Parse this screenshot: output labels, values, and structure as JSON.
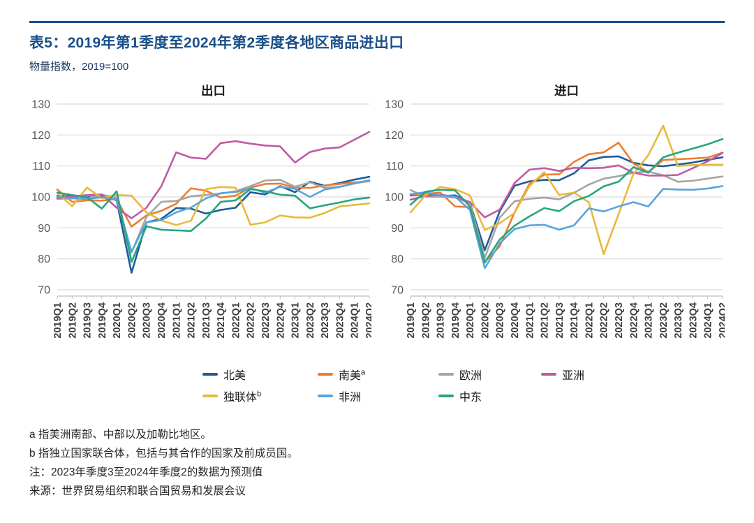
{
  "header": {
    "title": "表5：2019年第1季度至2024年第2季度各地区商品进出口",
    "subtitle": "物量指数，2019=100",
    "accent_color": "#1B4F8A"
  },
  "legend": {
    "items": [
      {
        "label": "北美",
        "sup": "",
        "color": "#1F5C99"
      },
      {
        "label": "南美",
        "sup": "a",
        "color": "#ED7D31"
      },
      {
        "label": "欧洲",
        "sup": "",
        "color": "#A5A5A5"
      },
      {
        "label": "亚洲",
        "sup": "",
        "color": "#C05BA3"
      },
      {
        "label": "独联体",
        "sup": "b",
        "color": "#E9B93C"
      },
      {
        "label": "非洲",
        "sup": "",
        "color": "#5BA3DB"
      },
      {
        "label": "中东",
        "sup": "",
        "color": "#27A57F"
      }
    ]
  },
  "footnotes": {
    "note_a": "a 指美洲南部、中部以及加勒比地区。",
    "note_b": "b 指独立国家联合体，包括与其合作的国家及前成员国。",
    "note": "注：2023年季度3至2024年季度2的数据为预测值",
    "source": "来源：世界贸易组织和联合国贸易和发展会议"
  },
  "style": {
    "grid_color": "#D9D9D9",
    "axis_color": "#BFBFBF",
    "ytick_color": "#595959",
    "xtick_color": "#404040",
    "chart_title_color": "#1a1a1a"
  },
  "chart_data": [
    {
      "type": "line",
      "title": "出口",
      "ylim": [
        70,
        130
      ],
      "yticks": [
        70,
        80,
        90,
        100,
        110,
        120,
        130
      ],
      "grid": true,
      "legend_position": "bottom-shared",
      "categories": [
        "2019Q1",
        "2019Q2",
        "2019Q3",
        "2019Q4",
        "2020Q1",
        "2020Q2",
        "2020Q3",
        "2020Q4",
        "2021Q1",
        "2021Q2",
        "2021Q3",
        "2021Q4",
        "2022Q1",
        "2022Q2",
        "2022Q3",
        "2022Q4",
        "2023Q1",
        "2023Q2",
        "2023Q3",
        "2023Q4",
        "2024Q1",
        "2024Q2"
      ],
      "series": [
        {
          "name": "北美",
          "color": "#1F5C99",
          "values": [
            100.3,
            100.2,
            99.9,
            100.4,
            98.9,
            75.5,
            91.8,
            92.9,
            96.4,
            96.2,
            94.6,
            95.8,
            96.5,
            101.5,
            100.8,
            103.5,
            101.5,
            104.9,
            103.6,
            104.5,
            105.6,
            106.5
          ]
        },
        {
          "name": "南美",
          "color": "#ED7D31",
          "values": [
            102.4,
            98.4,
            98.9,
            98.8,
            99.3,
            90.4,
            94.0,
            95.5,
            97.8,
            102.8,
            102.0,
            99.8,
            100.4,
            103.0,
            104.2,
            104.3,
            103.0,
            102.9,
            103.7,
            104.2,
            104.7,
            105.0
          ]
        },
        {
          "name": "欧洲",
          "color": "#A5A5A5",
          "values": [
            99.3,
            99.5,
            99.6,
            100.7,
            99.8,
            82.0,
            93.5,
            98.4,
            98.7,
            100.2,
            100.6,
            101.1,
            101.8,
            103.5,
            105.3,
            105.5,
            103.3,
            104.7,
            102.9,
            103.3,
            104.3,
            105.2
          ]
        },
        {
          "name": "亚洲",
          "color": "#C05BA3",
          "values": [
            99.6,
            100.1,
            100.6,
            100.8,
            96.5,
            93.1,
            96.5,
            103.4,
            114.4,
            112.7,
            112.3,
            117.4,
            118.0,
            117.2,
            116.6,
            116.3,
            111.1,
            114.5,
            115.6,
            116.0,
            118.5,
            121.0
          ]
        },
        {
          "name": "独联体",
          "color": "#E9B93C",
          "values": [
            101.3,
            97.0,
            103.0,
            99.6,
            100.6,
            100.4,
            95.0,
            92.4,
            90.9,
            92.3,
            102.5,
            103.2,
            103.0,
            91.0,
            91.8,
            94.0,
            93.4,
            93.3,
            94.8,
            96.9,
            97.4,
            97.9
          ]
        },
        {
          "name": "非洲",
          "color": "#5BA3DB",
          "values": [
            100.0,
            99.6,
            99.3,
            99.9,
            99.1,
            82.3,
            91.8,
            92.5,
            95.0,
            96.6,
            99.5,
            101.2,
            101.6,
            102.8,
            101.4,
            103.3,
            102.6,
            100.0,
            102.4,
            103.2,
            104.4,
            105.4
          ]
        },
        {
          "name": "中东",
          "color": "#27A57F",
          "values": [
            101.4,
            100.6,
            99.9,
            96.2,
            101.8,
            79.0,
            90.5,
            89.4,
            89.2,
            89.0,
            93.0,
            98.4,
            98.9,
            102.5,
            101.8,
            100.7,
            100.4,
            96.3,
            97.3,
            98.2,
            99.2,
            99.8
          ]
        }
      ]
    },
    {
      "type": "line",
      "title": "进口",
      "ylim": [
        70,
        130
      ],
      "yticks": [
        70,
        80,
        90,
        100,
        110,
        120,
        130
      ],
      "grid": true,
      "legend_position": "bottom-shared",
      "categories": [
        "2019Q1",
        "2019Q2",
        "2019Q3",
        "2019Q4",
        "2020Q1",
        "2020Q2",
        "2020Q3",
        "2020Q4",
        "2021Q1",
        "2021Q2",
        "2021Q3",
        "2021Q4",
        "2022Q1",
        "2022Q2",
        "2022Q3",
        "2022Q4",
        "2023Q1",
        "2023Q2",
        "2023Q3",
        "2023Q4",
        "2024Q1",
        "2024Q2"
      ],
      "series": [
        {
          "name": "北美",
          "color": "#1F5C99",
          "values": [
            100.5,
            100.9,
            100.3,
            100.5,
            98.1,
            82.8,
            95.3,
            103.6,
            105.0,
            105.5,
            105.4,
            107.6,
            111.8,
            112.9,
            113.1,
            111.0,
            110.2,
            109.9,
            110.5,
            111.1,
            112.0,
            112.8
          ]
        },
        {
          "name": "南美",
          "color": "#ED7D31",
          "values": [
            100.8,
            101.0,
            101.4,
            96.9,
            96.7,
            79.0,
            84.0,
            95.0,
            104.2,
            107.2,
            107.3,
            111.3,
            113.8,
            114.4,
            117.5,
            110.8,
            108.0,
            111.9,
            112.2,
            112.4,
            112.7,
            114.3
          ]
        },
        {
          "name": "欧洲",
          "color": "#A5A5A5",
          "values": [
            102.2,
            100.1,
            100.0,
            99.8,
            98.0,
            80.3,
            93.3,
            98.6,
            99.4,
            99.8,
            99.2,
            101.3,
            104.0,
            105.9,
            106.7,
            107.8,
            108.2,
            107.0,
            104.9,
            105.2,
            105.9,
            106.6
          ]
        },
        {
          "name": "亚洲",
          "color": "#C05BA3",
          "values": [
            99.1,
            100.3,
            100.7,
            100.1,
            98.3,
            93.4,
            95.9,
            104.5,
            108.8,
            109.3,
            108.4,
            109.4,
            109.3,
            109.4,
            110.2,
            107.8,
            106.9,
            106.9,
            107.1,
            109.3,
            111.5,
            114.2
          ]
        },
        {
          "name": "独联体",
          "color": "#E9B93C",
          "values": [
            95.0,
            100.5,
            103.2,
            102.5,
            100.5,
            89.3,
            91.5,
            94.8,
            103.5,
            108.0,
            100.6,
            101.4,
            98.3,
            81.5,
            94.4,
            107.4,
            113.5,
            123.0,
            110.0,
            110.3,
            110.4,
            110.4
          ]
        },
        {
          "name": "非洲",
          "color": "#5BA3DB",
          "values": [
            100.9,
            101.5,
            100.5,
            100.1,
            95.8,
            77.0,
            85.0,
            89.6,
            90.8,
            91.0,
            89.4,
            90.8,
            96.3,
            95.3,
            96.9,
            98.3,
            96.9,
            102.6,
            102.4,
            102.3,
            102.7,
            103.5
          ]
        },
        {
          "name": "中东",
          "color": "#27A57F",
          "values": [
            97.5,
            101.7,
            102.3,
            102.1,
            96.9,
            78.8,
            86.2,
            90.7,
            93.7,
            96.4,
            95.4,
            98.6,
            100.3,
            103.4,
            104.9,
            109.6,
            107.8,
            112.8,
            114.3,
            115.6,
            117.0,
            118.7
          ]
        }
      ]
    }
  ]
}
